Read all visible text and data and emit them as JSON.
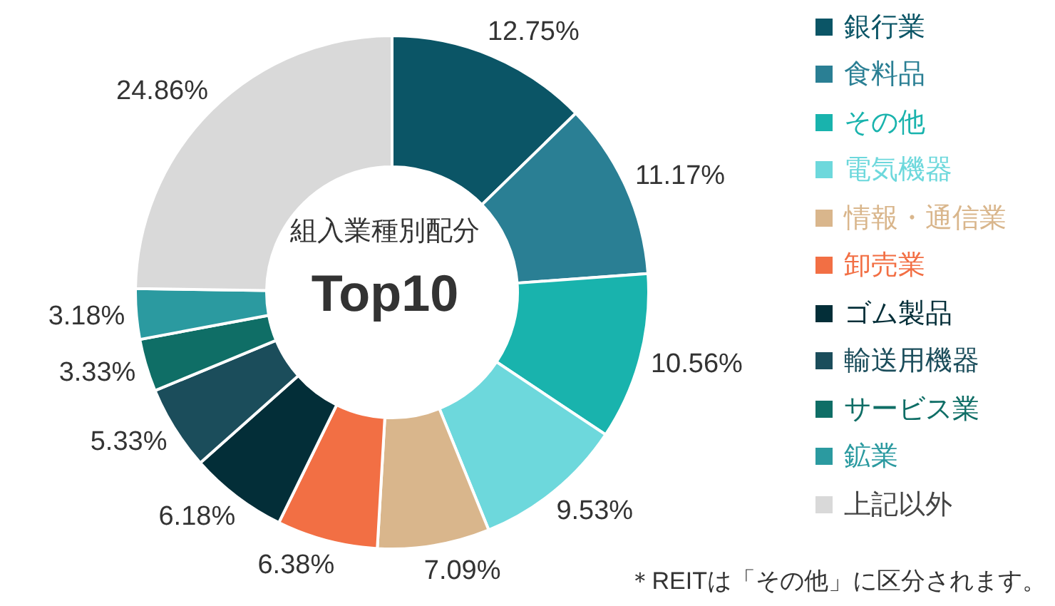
{
  "chart_data": {
    "type": "donut",
    "title": "組入業種別配分",
    "subtitle": "Top10",
    "categories": [
      "銀行業",
      "食料品",
      "その他",
      "電気機器",
      "情報・通信業",
      "卸売業",
      "ゴム製品",
      "輸送用機器",
      "サービス業",
      "鉱業",
      "上記以外"
    ],
    "values": [
      12.75,
      11.17,
      10.56,
      9.53,
      7.09,
      6.38,
      6.18,
      5.33,
      3.33,
      3.18,
      24.86
    ],
    "value_labels": [
      "12.75%",
      "11.17%",
      "10.56%",
      "9.53%",
      "7.09%",
      "6.38%",
      "6.18%",
      "5.33%",
      "3.33%",
      "3.18%",
      "24.86%"
    ],
    "colors": [
      "#0b5566",
      "#2a7f94",
      "#19b3ad",
      "#6dd8dc",
      "#d9b68c",
      "#f26f44",
      "#032e38",
      "#1b4d5b",
      "#0f6e66",
      "#2b9aa0",
      "#d9d9d9"
    ],
    "legend": "right",
    "annotations": [
      "＊REITは「その他」に区分されます。"
    ]
  }
}
